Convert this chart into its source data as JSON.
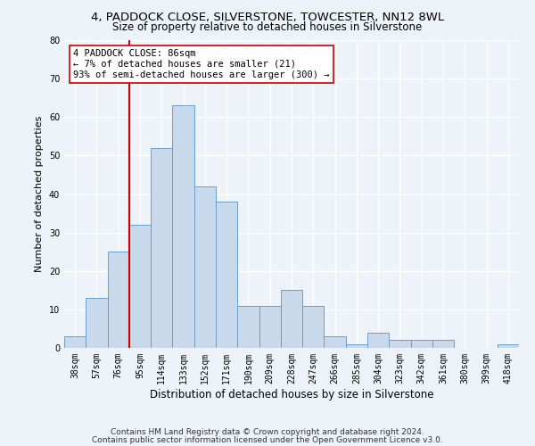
{
  "title1": "4, PADDOCK CLOSE, SILVERSTONE, TOWCESTER, NN12 8WL",
  "title2": "Size of property relative to detached houses in Silverstone",
  "xlabel": "Distribution of detached houses by size in Silverstone",
  "ylabel": "Number of detached properties",
  "categories": [
    "38sqm",
    "57sqm",
    "76sqm",
    "95sqm",
    "114sqm",
    "133sqm",
    "152sqm",
    "171sqm",
    "190sqm",
    "209sqm",
    "228sqm",
    "247sqm",
    "266sqm",
    "285sqm",
    "304sqm",
    "323sqm",
    "342sqm",
    "361sqm",
    "380sqm",
    "399sqm",
    "418sqm"
  ],
  "values": [
    3,
    13,
    25,
    32,
    52,
    63,
    42,
    38,
    11,
    11,
    15,
    11,
    3,
    1,
    4,
    2,
    2,
    2,
    0,
    0,
    1
  ],
  "bar_color": "#c9d9ec",
  "bar_edge_color": "#6a9ec9",
  "vline_color": "#cc0000",
  "annotation_text": "4 PADDOCK CLOSE: 86sqm\n← 7% of detached houses are smaller (21)\n93% of semi-detached houses are larger (300) →",
  "annotation_box_color": "#ffffff",
  "annotation_box_edge": "#cc0000",
  "ylim": [
    0,
    80
  ],
  "yticks": [
    0,
    10,
    20,
    30,
    40,
    50,
    60,
    70,
    80
  ],
  "footnote1": "Contains HM Land Registry data © Crown copyright and database right 2024.",
  "footnote2": "Contains public sector information licensed under the Open Government Licence v3.0.",
  "background_color": "#eef2f9",
  "plot_bg_color": "#eef2f9",
  "grid_color": "#ffffff",
  "title1_fontsize": 9.5,
  "title2_fontsize": 8.5,
  "xlabel_fontsize": 8.5,
  "ylabel_fontsize": 8,
  "tick_fontsize": 7,
  "annotation_fontsize": 7.5,
  "footnote_fontsize": 6.5
}
